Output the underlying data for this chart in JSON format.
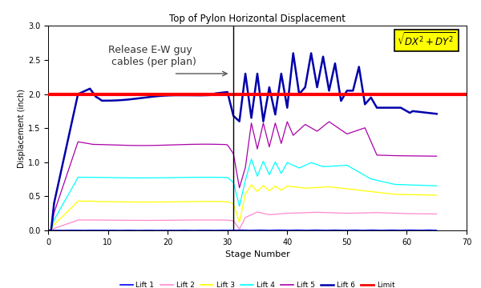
{
  "title": "Top of Pylon Horizontal Displacement",
  "xlabel": "Stage Number",
  "ylabel": "Displacement (inch)",
  "xlim": [
    0,
    70
  ],
  "ylim": [
    0.0,
    3.0
  ],
  "yticks": [
    0.0,
    0.5,
    1.0,
    1.5,
    2.0,
    2.5,
    3.0
  ],
  "xticks": [
    0,
    10,
    20,
    30,
    40,
    50,
    60,
    70
  ],
  "limit_y": 2.0,
  "vline_x": 31,
  "annotation_text": "Release E-W guy\n cables (per plan)",
  "colors": {
    "lift1": "#0000FF",
    "lift2": "#FF88CC",
    "lift3": "#FFFF00",
    "lift4": "#00FFFF",
    "lift5": "#AA00AA",
    "lift6": "#0000AA",
    "limit": "#FF0000"
  },
  "legend_labels": [
    "Lift 1",
    "Lift 2",
    "Lift 3",
    "Lift 4",
    "Lift 5",
    "Lift 6",
    "Limit"
  ],
  "background_color": "#FFFFFF",
  "plot_bg": "#FFFFFF"
}
